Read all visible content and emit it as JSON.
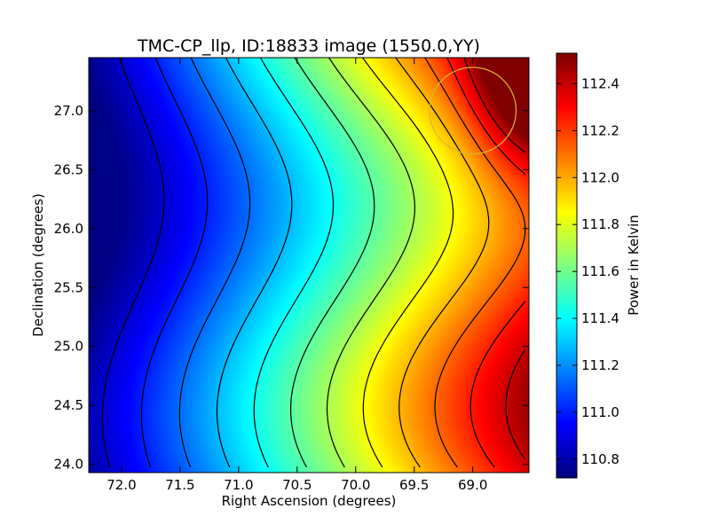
{
  "chart_data": {
    "type": "heatmap",
    "title": "TMC-CP_llp, ID:18833 image (1550.0,YY)",
    "xlabel": "Right Ascension (degrees)",
    "ylabel": "Declination (degrees)",
    "colorbar_label": "Power in Kelvin",
    "colormap": "jet",
    "x_reversed": true,
    "xlim": [
      72.28,
      68.52
    ],
    "ylim": [
      23.93,
      27.45
    ],
    "x_ticks": [
      72.0,
      71.5,
      71.0,
      70.5,
      70.0,
      69.5,
      69.0
    ],
    "x_tick_labels": [
      "72.0",
      "71.5",
      "71.0",
      "70.5",
      "70.0",
      "69.5",
      "69.0"
    ],
    "y_ticks": [
      24.0,
      24.5,
      25.0,
      25.5,
      26.0,
      26.5,
      27.0
    ],
    "y_tick_labels": [
      "24.0",
      "24.5",
      "25.0",
      "25.5",
      "26.0",
      "26.5",
      "27.0"
    ],
    "value_range": [
      110.72,
      112.53
    ],
    "colorbar_ticks": [
      110.8,
      111.0,
      111.2,
      111.4,
      111.6,
      111.8,
      112.0,
      112.2,
      112.4
    ],
    "colorbar_tick_labels": [
      "110.8",
      "111.0",
      "111.2",
      "111.4",
      "111.6",
      "111.8",
      "112.0",
      "112.2",
      "112.4"
    ],
    "surface": {
      "description_points": [
        {
          "ra": 72.28,
          "dec": 23.93,
          "value": 110.72
        },
        {
          "ra": 72.0,
          "dec": 25.5,
          "value": 110.85
        },
        {
          "ra": 71.0,
          "dec": 25.5,
          "value": 111.1
        },
        {
          "ra": 70.5,
          "dec": 25.5,
          "value": 111.35
        },
        {
          "ra": 70.0,
          "dec": 25.5,
          "value": 111.6
        },
        {
          "ra": 69.5,
          "dec": 25.5,
          "value": 111.85
        },
        {
          "ra": 68.52,
          "dec": 26.0,
          "value": 112.15
        },
        {
          "ra": 68.6,
          "dec": 27.3,
          "value": 112.53
        }
      ]
    },
    "contour_levels": [
      110.86,
      111.0,
      111.14,
      111.28,
      111.42,
      111.56,
      111.7,
      111.84,
      111.98,
      112.12,
      112.26,
      112.4
    ],
    "contour_color": "#000000",
    "marker": {
      "type": "circle",
      "ra": 69.0,
      "dec": 27.0,
      "radius_deg": 0.37,
      "color": "#d8b830"
    }
  }
}
